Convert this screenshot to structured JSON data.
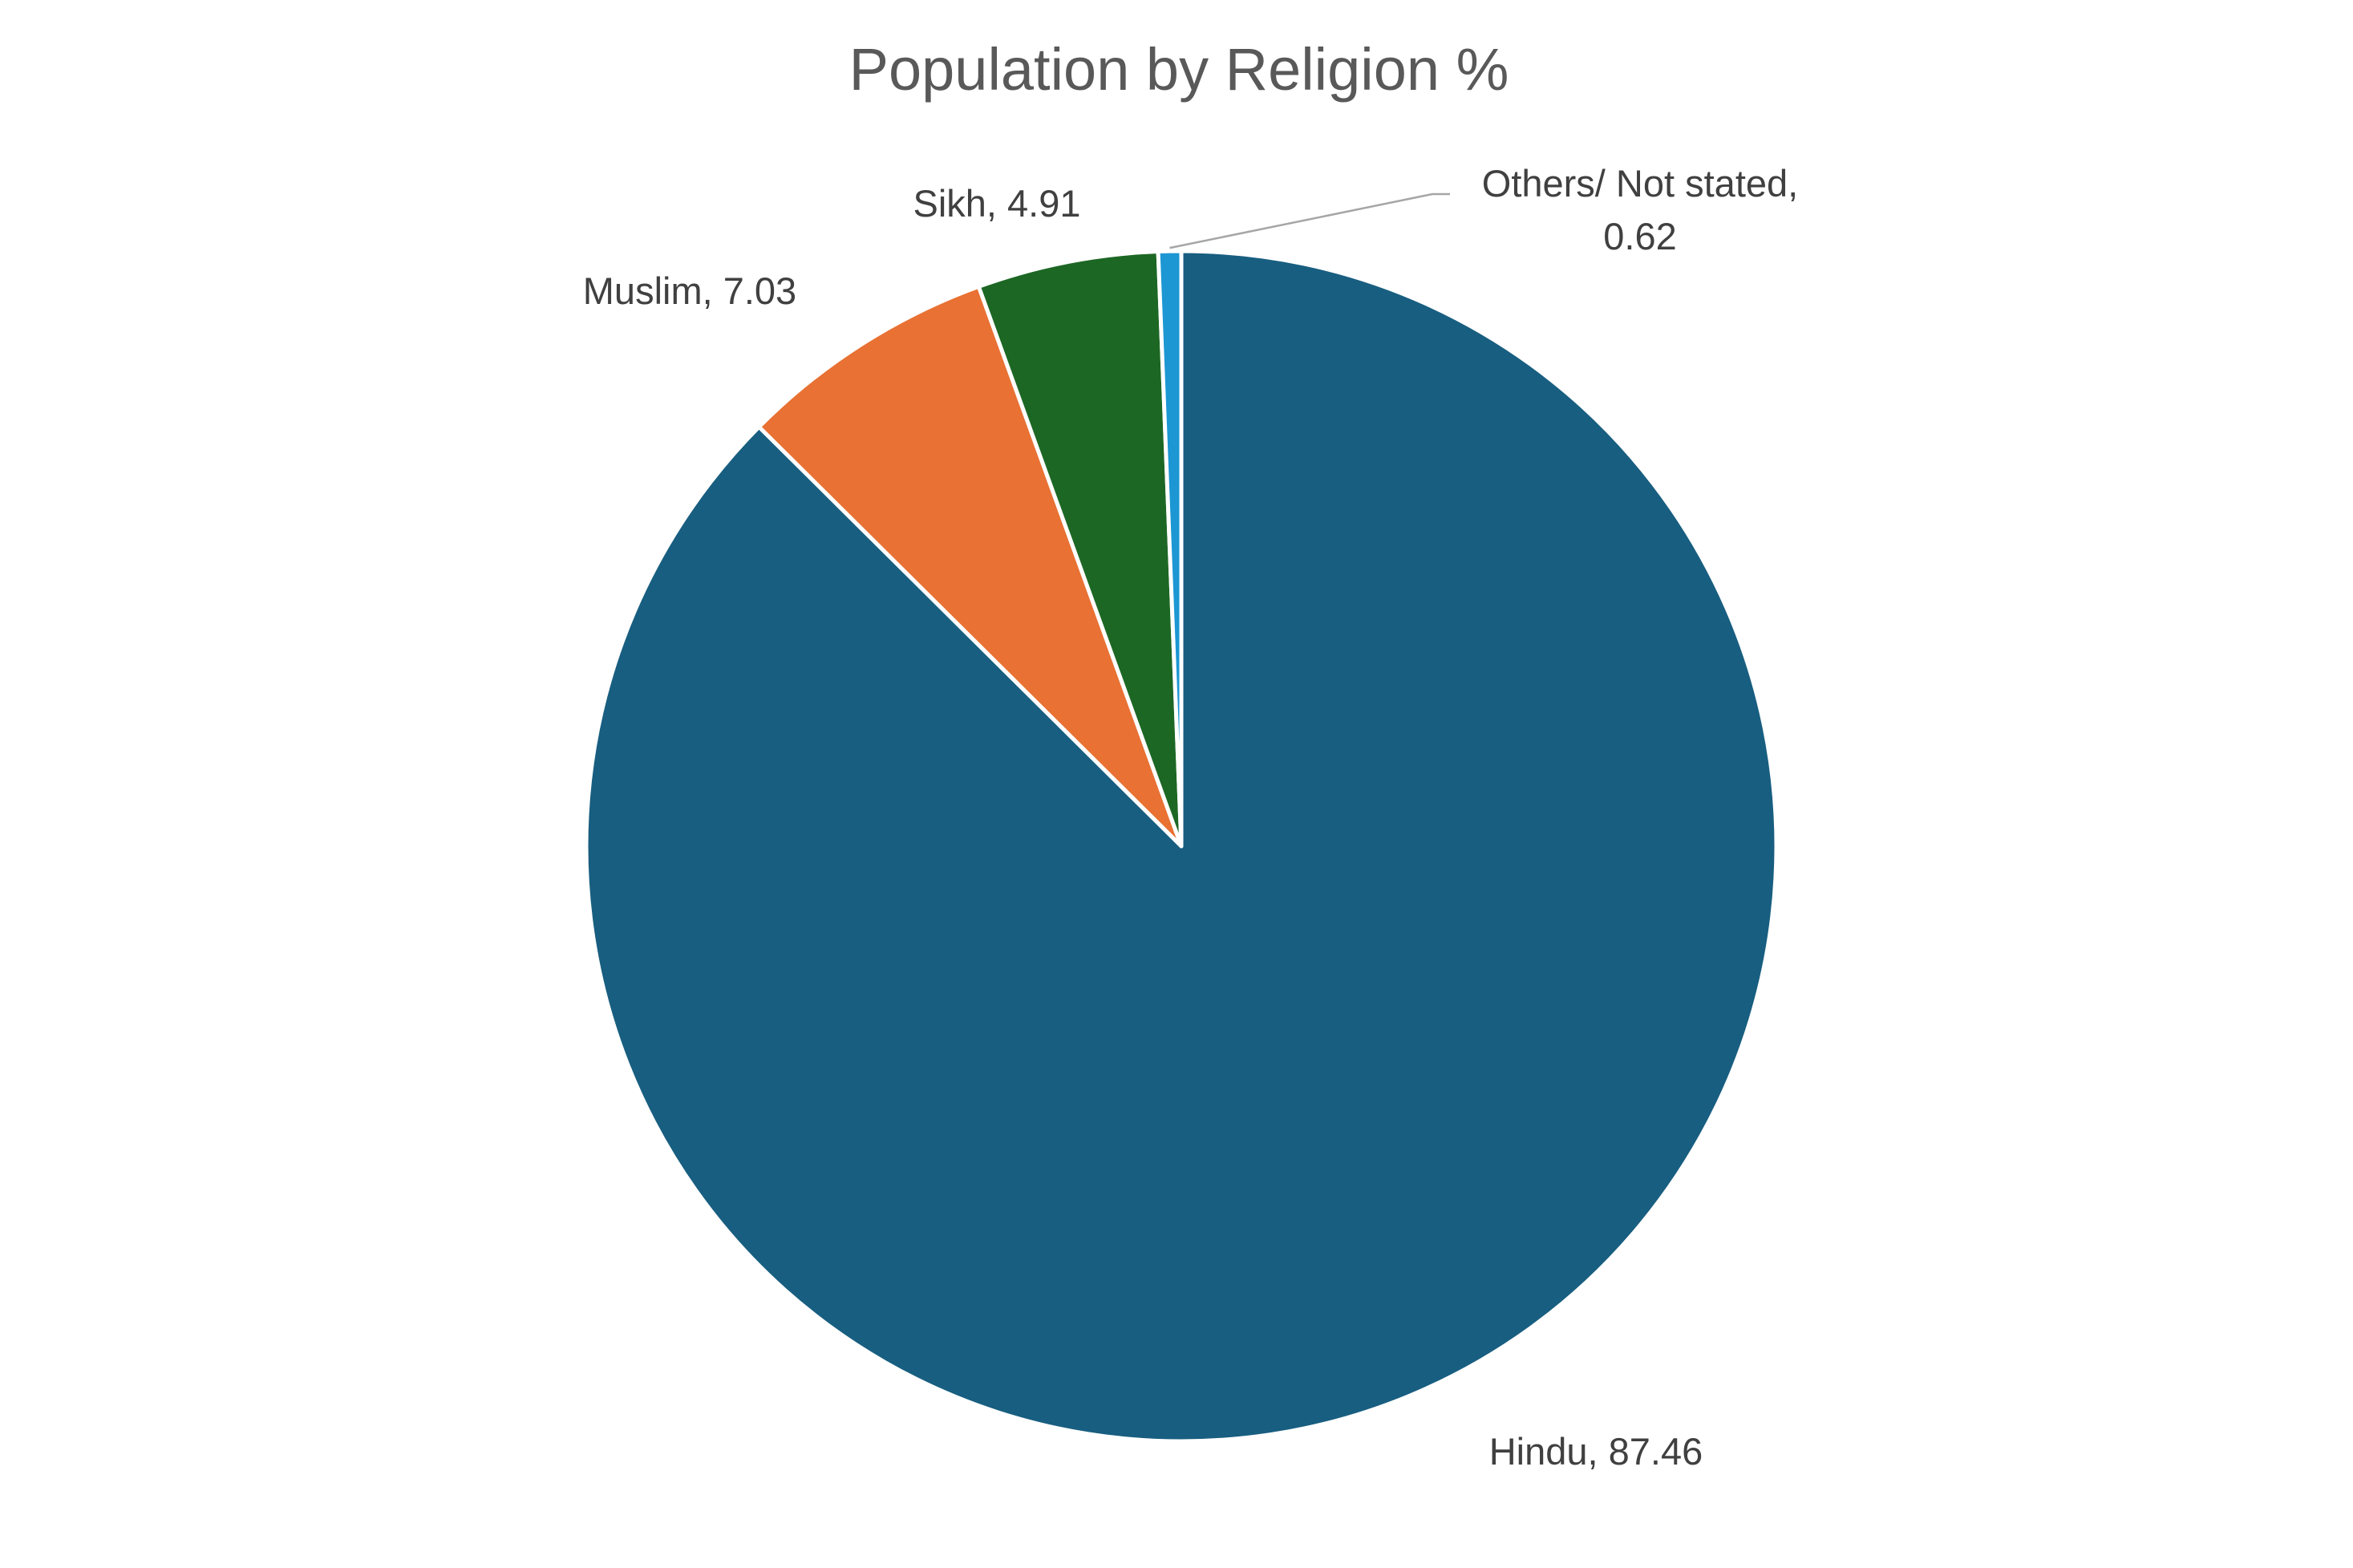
{
  "chart_data": {
    "type": "pie",
    "title": "Population by Religion %",
    "start_angle_deg": 0,
    "direction": "clockwise",
    "slices": [
      {
        "label": "Hindu",
        "value": 87.46,
        "color": "#185E80",
        "label_text": "Hindu, 87.46"
      },
      {
        "label": "Muslim",
        "value": 7.03,
        "color": "#E87133",
        "label_text": "Muslim, 7.03"
      },
      {
        "label": "Sikh",
        "value": 4.91,
        "color": "#1C6724",
        "label_text": "Sikh, 4.91"
      },
      {
        "label": "Others/ Not stated",
        "value": 0.62,
        "color": "#1C97D3",
        "label_text": "Others/ Not stated, 0.62",
        "label_lines": [
          "Others/ Not stated,",
          "0.62"
        ]
      }
    ],
    "slice_border_color": "#ffffff",
    "leader_line_color": "#A6A6A6",
    "legend": "none"
  }
}
